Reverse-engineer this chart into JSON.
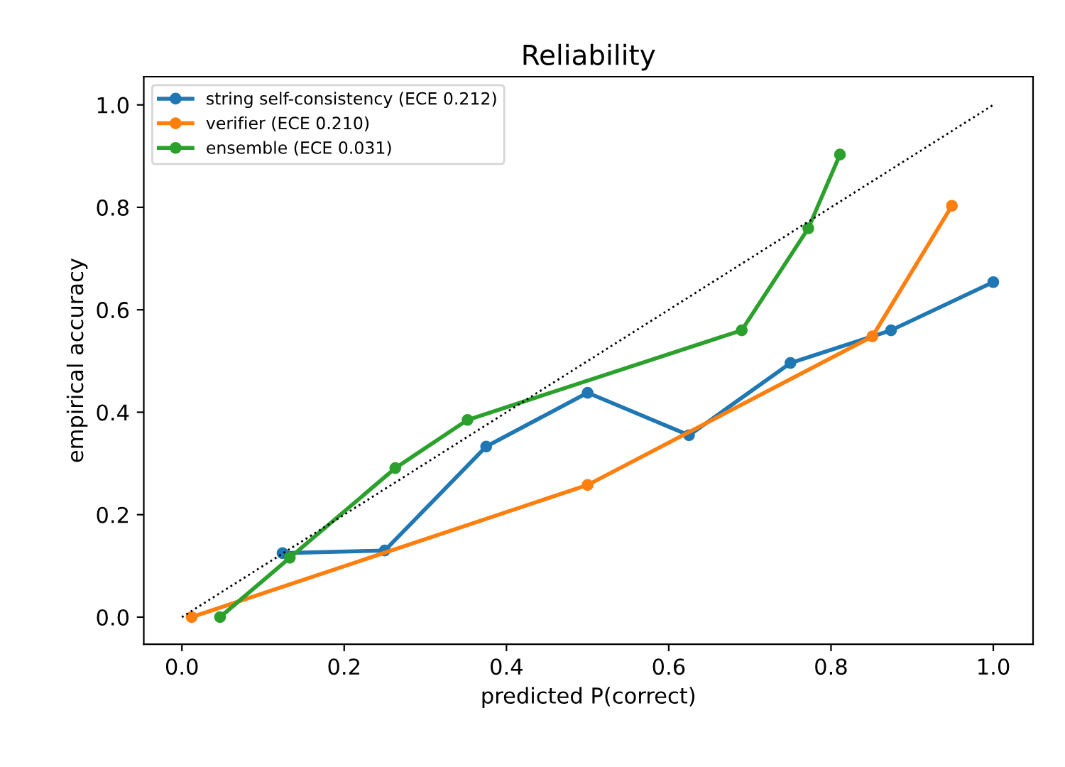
{
  "chart_data": {
    "type": "line",
    "title": "Reliability",
    "xlabel": "predicted P(correct)",
    "ylabel": "empirical accuracy",
    "xlim": [
      -0.047,
      1.049
    ],
    "ylim": [
      -0.053,
      1.055
    ],
    "xticks": [
      {
        "value": 0,
        "label": "0.0"
      },
      0.2,
      0.4,
      0.6,
      0.8,
      {
        "value": 1,
        "label": "1.0"
      }
    ],
    "yticks": [
      {
        "value": 0,
        "label": "0.0"
      },
      0.2,
      0.4,
      0.6,
      0.8,
      {
        "value": 1,
        "label": "1.0"
      }
    ],
    "legend": "top left",
    "grid": false,
    "series": [
      {
        "name": "string self-consistency (ECE 0.212)",
        "color": "#1f77b4",
        "marker": "circle",
        "x": [
          0.124,
          0.25,
          0.375,
          0.5,
          0.625,
          0.75,
          0.874,
          1.0
        ],
        "values": [
          0.125,
          0.13,
          0.333,
          0.438,
          0.355,
          0.496,
          0.56,
          0.654
        ]
      },
      {
        "name": "verifier (ECE 0.210)",
        "color": "#ff7f0e",
        "marker": "circle",
        "x": [
          0.012,
          0.5,
          0.851,
          0.949
        ],
        "values": [
          0.0,
          0.258,
          0.548,
          0.803
        ]
      },
      {
        "name": "ensemble (ECE 0.031)",
        "color": "#2ca02c",
        "marker": "circle",
        "x": [
          0.047,
          0.133,
          0.263,
          0.352,
          0.69,
          0.772,
          0.811
        ],
        "values": [
          0.0,
          0.116,
          0.291,
          0.385,
          0.56,
          0.759,
          0.903
        ]
      },
      {
        "color": "#000000",
        "marker": "none",
        "line_style": "dotted",
        "x": [
          0.0,
          1.0
        ],
        "values": [
          0.0,
          1.0
        ]
      }
    ]
  }
}
